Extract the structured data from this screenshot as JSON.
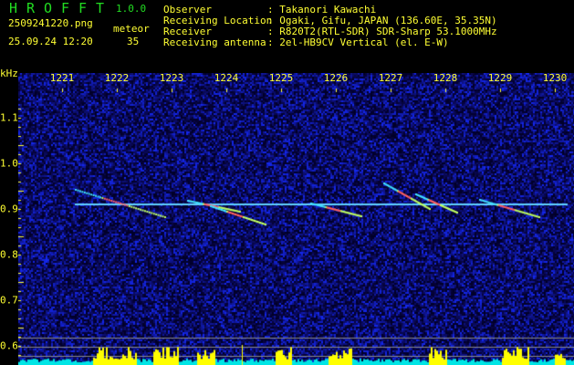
{
  "app": {
    "name_letters": [
      "H",
      "R",
      "O",
      "F",
      "F",
      "T"
    ],
    "version": "1.0.0"
  },
  "file": {
    "name": "2509241220.png",
    "datetime": "25.09.24 12:20"
  },
  "meteor": {
    "label": "meteor",
    "count": "35"
  },
  "info": [
    {
      "label": "Observer",
      "value": ": Takanori Kawachi"
    },
    {
      "label": "Receiving Location",
      "value": ": Ogaki, Gifu, JAPAN (136.60E, 35.35N)"
    },
    {
      "label": "Receiver",
      "value": ": R820T2(RTL-SDR) SDR-Sharp 53.1000MHz"
    },
    {
      "label": "Receiving antenna",
      "value": ": 2el-HB9CV Vertical (el. E-W)"
    }
  ],
  "axis": {
    "y_unit": "kHz",
    "time_ticks": [
      "1221",
      "1222",
      "1223",
      "1224",
      "1225",
      "1226",
      "1227",
      "1228",
      "1229",
      "1230"
    ],
    "freq_ticks": [
      "1.1",
      "1.0",
      "0.9",
      "0.8",
      "0.7",
      "0.6"
    ]
  },
  "colors": {
    "text": "#ffff33",
    "logo": "#22dd22",
    "noise": "#0a0a8c",
    "level_base": "#00e5e5",
    "level_peak": "#ffff00"
  }
}
